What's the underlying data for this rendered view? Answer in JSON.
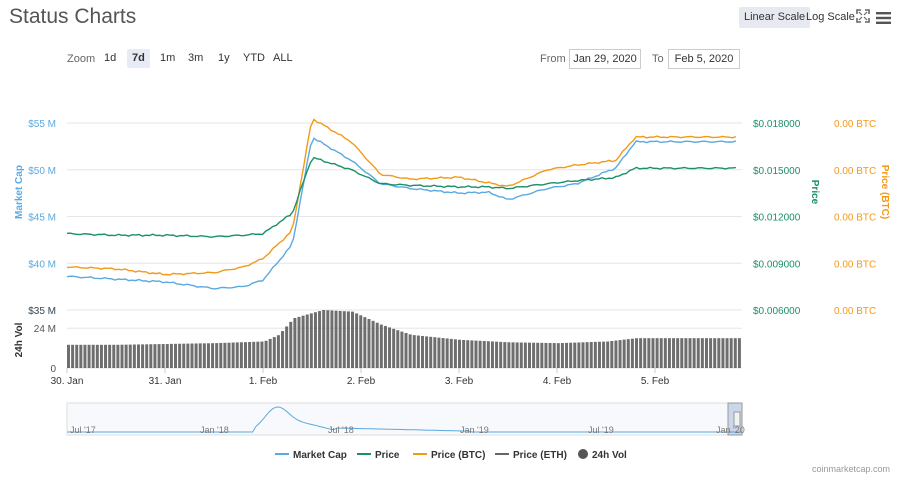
{
  "header": {
    "title": "Status Charts",
    "linear_scale": "Linear Scale",
    "log_scale": "Log Scale",
    "fullscreen_icon": "fullscreen-icon",
    "menu_icon": "hamburger-menu-icon"
  },
  "zoom": {
    "label": "Zoom",
    "options": [
      "1d",
      "7d",
      "1m",
      "3m",
      "1y",
      "YTD",
      "ALL"
    ],
    "active": "7d"
  },
  "range": {
    "from_label": "From",
    "from_value": "Jan 29, 2020",
    "to_label": "To",
    "to_value": "Feb 5, 2020"
  },
  "credit": "coinmarketcap.com",
  "colors": {
    "market_cap": "#5aa9e0",
    "price": "#1b9068",
    "price_btc": "#f29a17",
    "price_eth": "#666666",
    "volume": "#555555"
  },
  "chart_data": {
    "type": "line",
    "x_ticks": [
      "30. Jan",
      "31. Jan",
      "1. Feb",
      "2. Feb",
      "3. Feb",
      "4. Feb",
      "5. Feb"
    ],
    "axes": {
      "market_cap": {
        "label": "Market Cap",
        "ticks": [
          "$55 M",
          "$50 M",
          "$45 M",
          "$40 M",
          "$35 M"
        ],
        "range": [
          35,
          55
        ]
      },
      "price": {
        "label": "Price",
        "ticks": [
          "$0.018000",
          "$0.015000",
          "$0.012000",
          "$0.009000",
          "$0.006000"
        ],
        "range": [
          0.006,
          0.018
        ]
      },
      "price_btc": {
        "label": "Price (BTC)",
        "ticks": [
          "0.00 BTC",
          "0.00 BTC",
          "0.00 BTC",
          "0.00 BTC",
          "0.00 BTC"
        ]
      },
      "volume": {
        "label": "24h Vol",
        "ticks": [
          "$35 M",
          "24 M",
          "0"
        ],
        "range": [
          0,
          35
        ]
      }
    },
    "series": [
      {
        "name": "Market Cap",
        "unit": "$M",
        "x": [
          0,
          0.5,
          1,
          1.5,
          1.8,
          2.0,
          2.3,
          2.5,
          2.9,
          3.2,
          3.5,
          4.0,
          4.3,
          4.5,
          4.9,
          5.2,
          5.6,
          5.8
        ],
        "values": [
          38.6,
          38.3,
          38.0,
          37.3,
          37.5,
          38.2,
          42,
          53.5,
          51,
          48.5,
          48.0,
          47.5,
          47.6,
          46.8,
          48.0,
          48.5,
          50.2,
          53.0
        ]
      },
      {
        "name": "Price",
        "unit": "$",
        "x": [
          0,
          0.5,
          1,
          1.5,
          1.8,
          2.0,
          2.3,
          2.5,
          2.9,
          3.2,
          3.5,
          4.0,
          4.3,
          4.5,
          4.9,
          5.2,
          5.6,
          5.8
        ],
        "values": [
          0.0109,
          0.0108,
          0.0108,
          0.0107,
          0.0108,
          0.0109,
          0.0122,
          0.0158,
          0.015,
          0.0141,
          0.014,
          0.0139,
          0.0139,
          0.0138,
          0.0141,
          0.0143,
          0.0145,
          0.0151
        ]
      },
      {
        "name": "Price (BTC)",
        "x": [
          0,
          0.5,
          1,
          1.5,
          1.8,
          2.0,
          2.3,
          2.5,
          2.9,
          3.2,
          3.5,
          4.0,
          4.3,
          4.5,
          4.9,
          5.2,
          5.6,
          5.8
        ],
        "values": [
          39.6,
          39.4,
          38.8,
          39.0,
          39.6,
          40.5,
          43.5,
          55.5,
          53.0,
          49.5,
          49.0,
          49.2,
          48.6,
          48.2,
          50.0,
          50.5,
          51.0,
          53.5
        ]
      },
      {
        "name": "Price (ETH)",
        "x": [],
        "values": []
      },
      {
        "name": "24h Vol",
        "unit": "$M",
        "x": [
          0,
          0.5,
          1,
          1.5,
          2.0,
          2.15,
          2.3,
          2.6,
          2.9,
          3.2,
          3.5,
          4.0,
          4.5,
          5.0,
          5.5,
          5.8
        ],
        "values": [
          14,
          14,
          14.5,
          15,
          16,
          20,
          30,
          35,
          34,
          26,
          20,
          17,
          15.5,
          15,
          16,
          18
        ]
      }
    ],
    "navigator": {
      "ticks": [
        "Jul '17",
        "Jan '18",
        "Jul '18",
        "Jan '19",
        "Jul '19",
        "Jan '20"
      ]
    },
    "legend": [
      "Market Cap",
      "Price",
      "Price (BTC)",
      "Price (ETH)",
      "24h Vol"
    ]
  }
}
